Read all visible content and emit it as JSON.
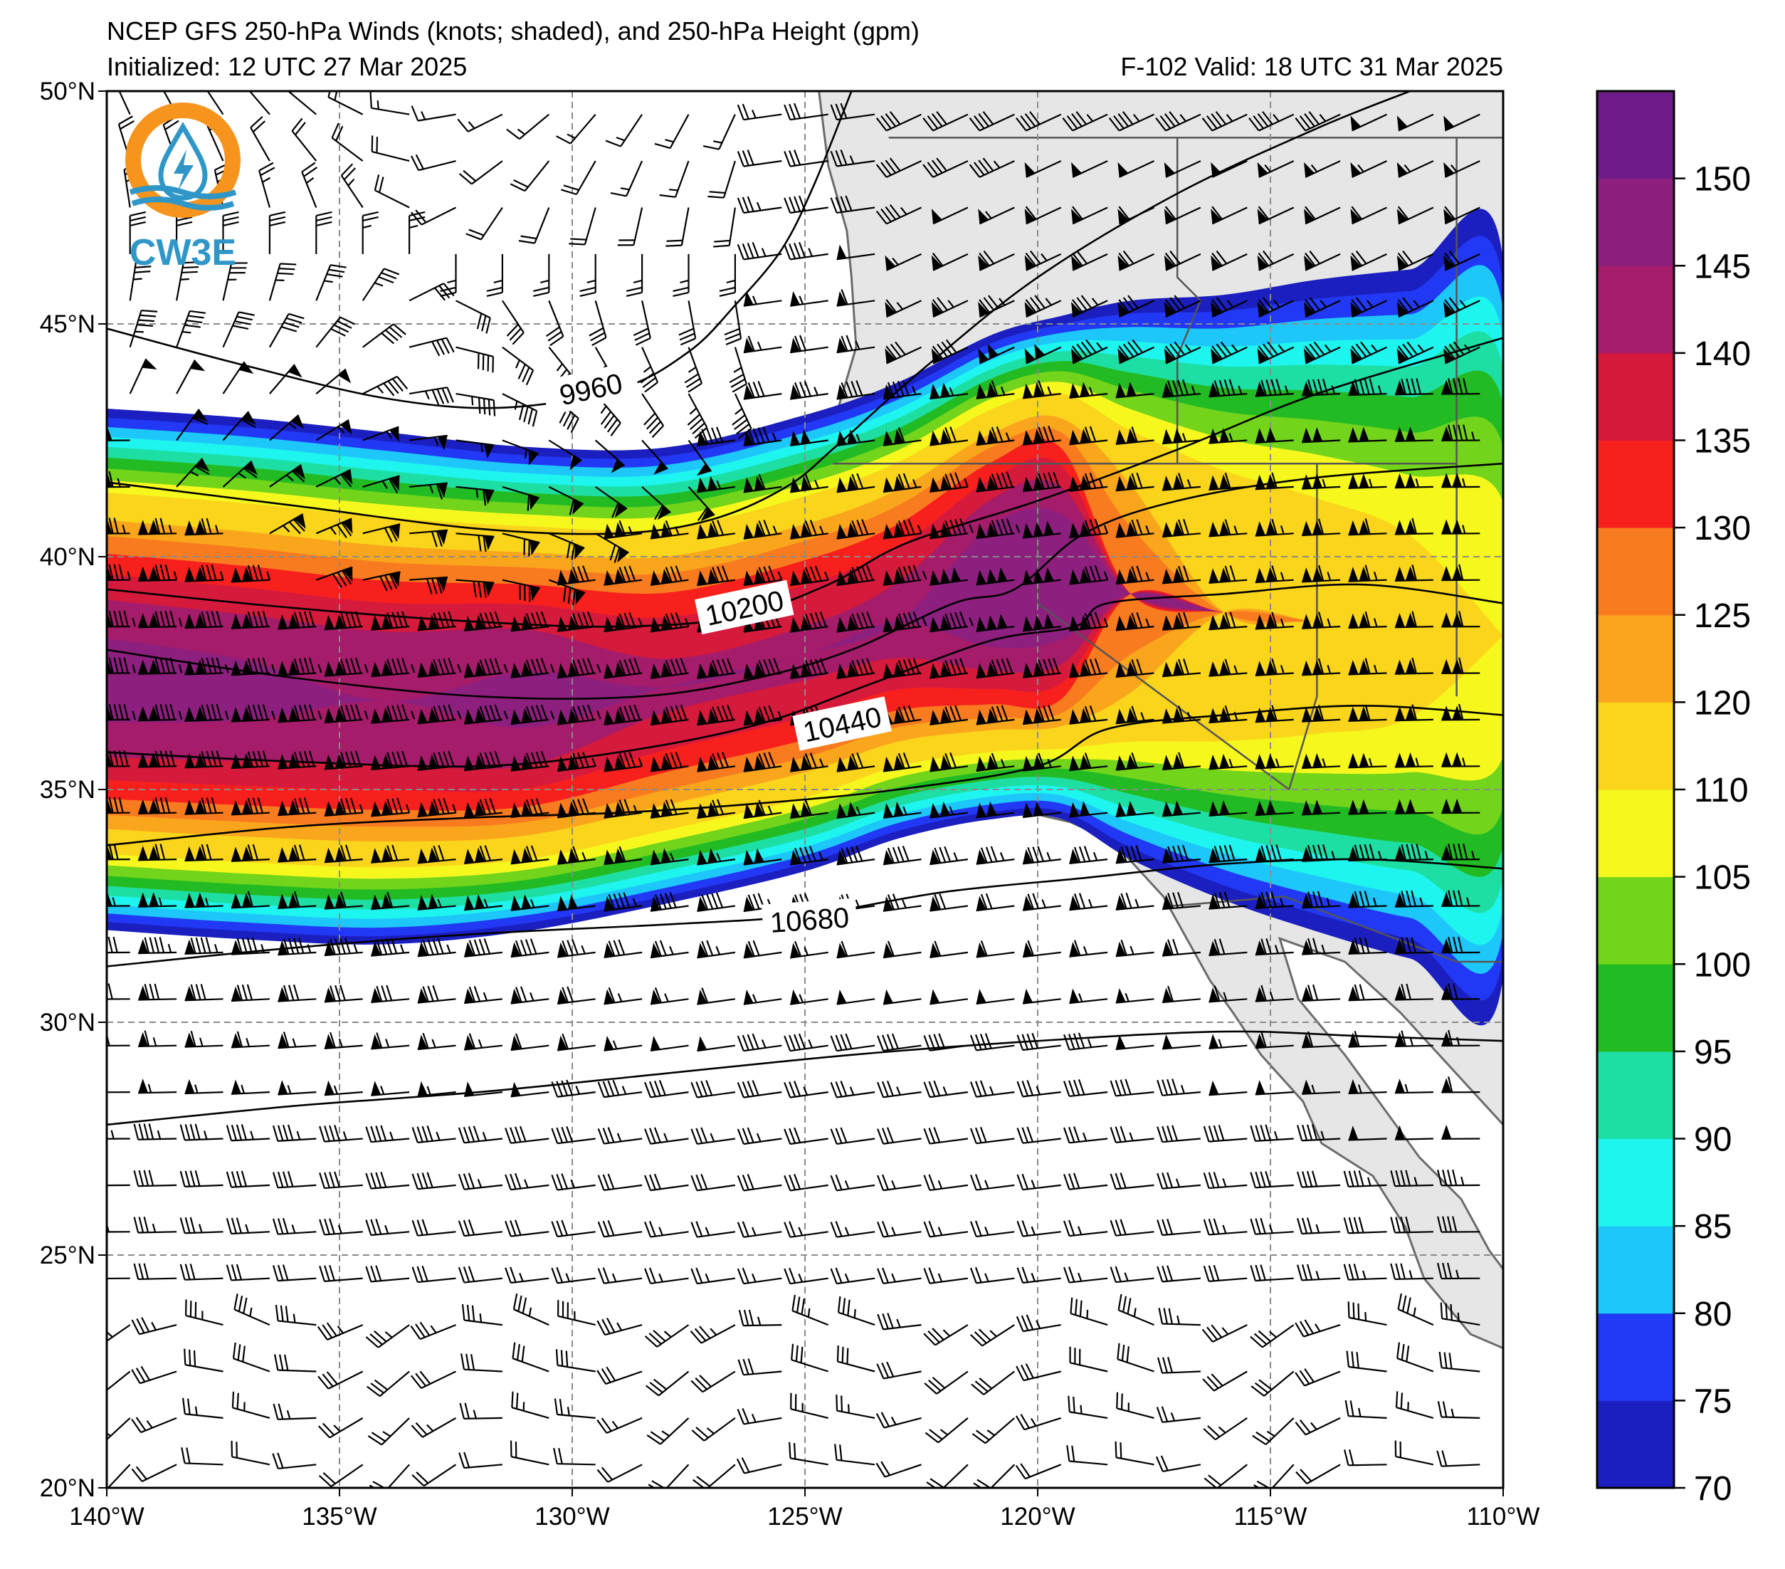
{
  "title": {
    "line1": "NCEP GFS 250-hPa Winds (knots; shaded), and 250-hPa Height (gpm)",
    "init": "Initialized: 12 UTC 27 Mar 2025",
    "valid": "F-102  Valid: 18 UTC 31 Mar 2025"
  },
  "logo": {
    "text": "CW3E",
    "colors": {
      "ring": "#f7941d",
      "drop": "#2f97c8",
      "waves": "#2f97c8"
    }
  },
  "map": {
    "lon_range": [
      -140,
      -110
    ],
    "lat_range": [
      20,
      50
    ],
    "lon_ticks": [
      {
        "value": -140,
        "label": "140°W"
      },
      {
        "value": -135,
        "label": "135°W"
      },
      {
        "value": -130,
        "label": "130°W"
      },
      {
        "value": -125,
        "label": "125°W"
      },
      {
        "value": -120,
        "label": "120°W"
      },
      {
        "value": -115,
        "label": "115°W"
      },
      {
        "value": -110,
        "label": "110°W"
      }
    ],
    "lat_ticks": [
      {
        "value": 20,
        "label": "20°N"
      },
      {
        "value": 25,
        "label": "25°N"
      },
      {
        "value": 30,
        "label": "30°N"
      },
      {
        "value": 35,
        "label": "35°N"
      },
      {
        "value": 40,
        "label": "40°N"
      },
      {
        "value": 45,
        "label": "45°N"
      },
      {
        "value": 50,
        "label": "50°N"
      }
    ],
    "land_color": "#e6e6e6",
    "grid": true
  },
  "colorbar": {
    "min": 70,
    "max": 155,
    "bins": [
      {
        "from": 70,
        "to": 75,
        "color": "#1c1fbf"
      },
      {
        "from": 75,
        "to": 80,
        "color": "#2138f5"
      },
      {
        "from": 80,
        "to": 85,
        "color": "#1ec7fa"
      },
      {
        "from": 85,
        "to": 90,
        "color": "#1ef5ef"
      },
      {
        "from": 90,
        "to": 95,
        "color": "#1edfa3"
      },
      {
        "from": 95,
        "to": 100,
        "color": "#22bb23"
      },
      {
        "from": 100,
        "to": 105,
        "color": "#72d41b"
      },
      {
        "from": 105,
        "to": 110,
        "color": "#f6f81d"
      },
      {
        "from": 110,
        "to": 120,
        "color": "#fad51c"
      },
      {
        "from": 120,
        "to": 125,
        "color": "#faa61c"
      },
      {
        "from": 125,
        "to": 130,
        "color": "#f97b1f"
      },
      {
        "from": 130,
        "to": 135,
        "color": "#f8201d"
      },
      {
        "from": 135,
        "to": 140,
        "color": "#d61a3c"
      },
      {
        "from": 140,
        "to": 145,
        "color": "#a51c6a"
      },
      {
        "from": 145,
        "to": 150,
        "color": "#8d1f7f"
      },
      {
        "from": 150,
        "to": 155,
        "color": "#6f1c8a"
      }
    ],
    "tick_labels": [
      "70",
      "75",
      "80",
      "85",
      "90",
      "95",
      "100",
      "105",
      "110",
      "120",
      "125",
      "130",
      "135",
      "140",
      "145",
      "150"
    ]
  },
  "height_contours": [
    {
      "label": "9960",
      "points": [
        [
          -140,
          44.9
        ],
        [
          -137,
          44.1
        ],
        [
          -134,
          43.4
        ],
        [
          -131.5,
          43.2
        ],
        [
          -129,
          43.6
        ],
        [
          -127.5,
          44.4
        ],
        [
          -126.5,
          45.4
        ],
        [
          -125.5,
          46.6
        ],
        [
          -124.8,
          48
        ],
        [
          -124,
          50
        ]
      ],
      "label_at": [
        -129.6,
        43.6
      ],
      "label_angle": -12
    },
    {
      "label": "",
      "points": [
        [
          -140,
          41.6
        ],
        [
          -136,
          41.1
        ],
        [
          -132,
          40.6
        ],
        [
          -129,
          40.5
        ],
        [
          -127,
          40.8
        ],
        [
          -125.4,
          41.5
        ],
        [
          -124.3,
          42.4
        ],
        [
          -122.5,
          44
        ],
        [
          -120,
          46
        ],
        [
          -117,
          47.8
        ],
        [
          -114,
          49.2
        ],
        [
          -112,
          50
        ]
      ],
      "label_at": null,
      "label_angle": 0
    },
    {
      "label": "10200",
      "points": [
        [
          -140,
          39.3
        ],
        [
          -136,
          38.9
        ],
        [
          -132,
          38.6
        ],
        [
          -129,
          38.5
        ],
        [
          -126.5,
          38.7
        ],
        [
          -124.5,
          39.4
        ],
        [
          -122.8,
          40.3
        ],
        [
          -120,
          41.2
        ],
        [
          -117,
          42.3
        ],
        [
          -114,
          43.5
        ],
        [
          -110,
          44.7
        ]
      ],
      "label_at": [
        -126.3,
        38.9
      ],
      "label_angle": -12
    },
    {
      "label": "",
      "points": [
        [
          -140,
          38.0
        ],
        [
          -136,
          37.4
        ],
        [
          -132,
          37.0
        ],
        [
          -128.5,
          37.0
        ],
        [
          -126,
          37.4
        ],
        [
          -124,
          38.0
        ],
        [
          -121.8,
          39.0
        ],
        [
          -120.5,
          39.3
        ],
        [
          -119,
          40.5
        ],
        [
          -117,
          41.2
        ],
        [
          -114,
          41.7
        ],
        [
          -110,
          42.0
        ]
      ],
      "label_at": null,
      "label_angle": 0
    },
    {
      "label": "10440",
      "points": [
        [
          -140,
          35.8
        ],
        [
          -136,
          35.6
        ],
        [
          -132,
          35.5
        ],
        [
          -129,
          35.8
        ],
        [
          -126,
          36.4
        ],
        [
          -123.5,
          37.3
        ],
        [
          -121,
          38.2
        ],
        [
          -119.2,
          38.5
        ],
        [
          -118.5,
          39.0
        ],
        [
          -116,
          39.2
        ],
        [
          -113,
          39.4
        ],
        [
          -110,
          39.0
        ]
      ],
      "label_at": [
        -124.2,
        36.4
      ],
      "label_angle": -12
    },
    {
      "label": "",
      "points": [
        [
          -140,
          33.8
        ],
        [
          -136,
          34.2
        ],
        [
          -132,
          34.4
        ],
        [
          -129,
          34.5
        ],
        [
          -126,
          34.7
        ],
        [
          -123,
          35.0
        ],
        [
          -120,
          35.5
        ],
        [
          -118.5,
          36.3
        ],
        [
          -116,
          36.6
        ],
        [
          -113,
          36.8
        ],
        [
          -110,
          36.6
        ]
      ],
      "label_at": null,
      "label_angle": 0
    },
    {
      "label": "10680",
      "points": [
        [
          -140,
          31.2
        ],
        [
          -136,
          31.6
        ],
        [
          -132,
          31.9
        ],
        [
          -128,
          32.1
        ],
        [
          -125,
          32.3
        ],
        [
          -122,
          32.8
        ],
        [
          -119,
          33.1
        ],
        [
          -116,
          33.4
        ],
        [
          -113,
          33.5
        ],
        [
          -110,
          33.3
        ]
      ],
      "label_at": [
        -124.9,
        32.2
      ],
      "label_angle": -4
    },
    {
      "label": "",
      "points": [
        [
          -140,
          27.8
        ],
        [
          -136,
          28.2
        ],
        [
          -132,
          28.5
        ],
        [
          -128,
          28.9
        ],
        [
          -124,
          29.3
        ],
        [
          -120,
          29.6
        ],
        [
          -116,
          29.8
        ],
        [
          -113,
          29.7
        ],
        [
          -110,
          29.6
        ]
      ],
      "label_at": null,
      "label_angle": 0
    }
  ]
}
